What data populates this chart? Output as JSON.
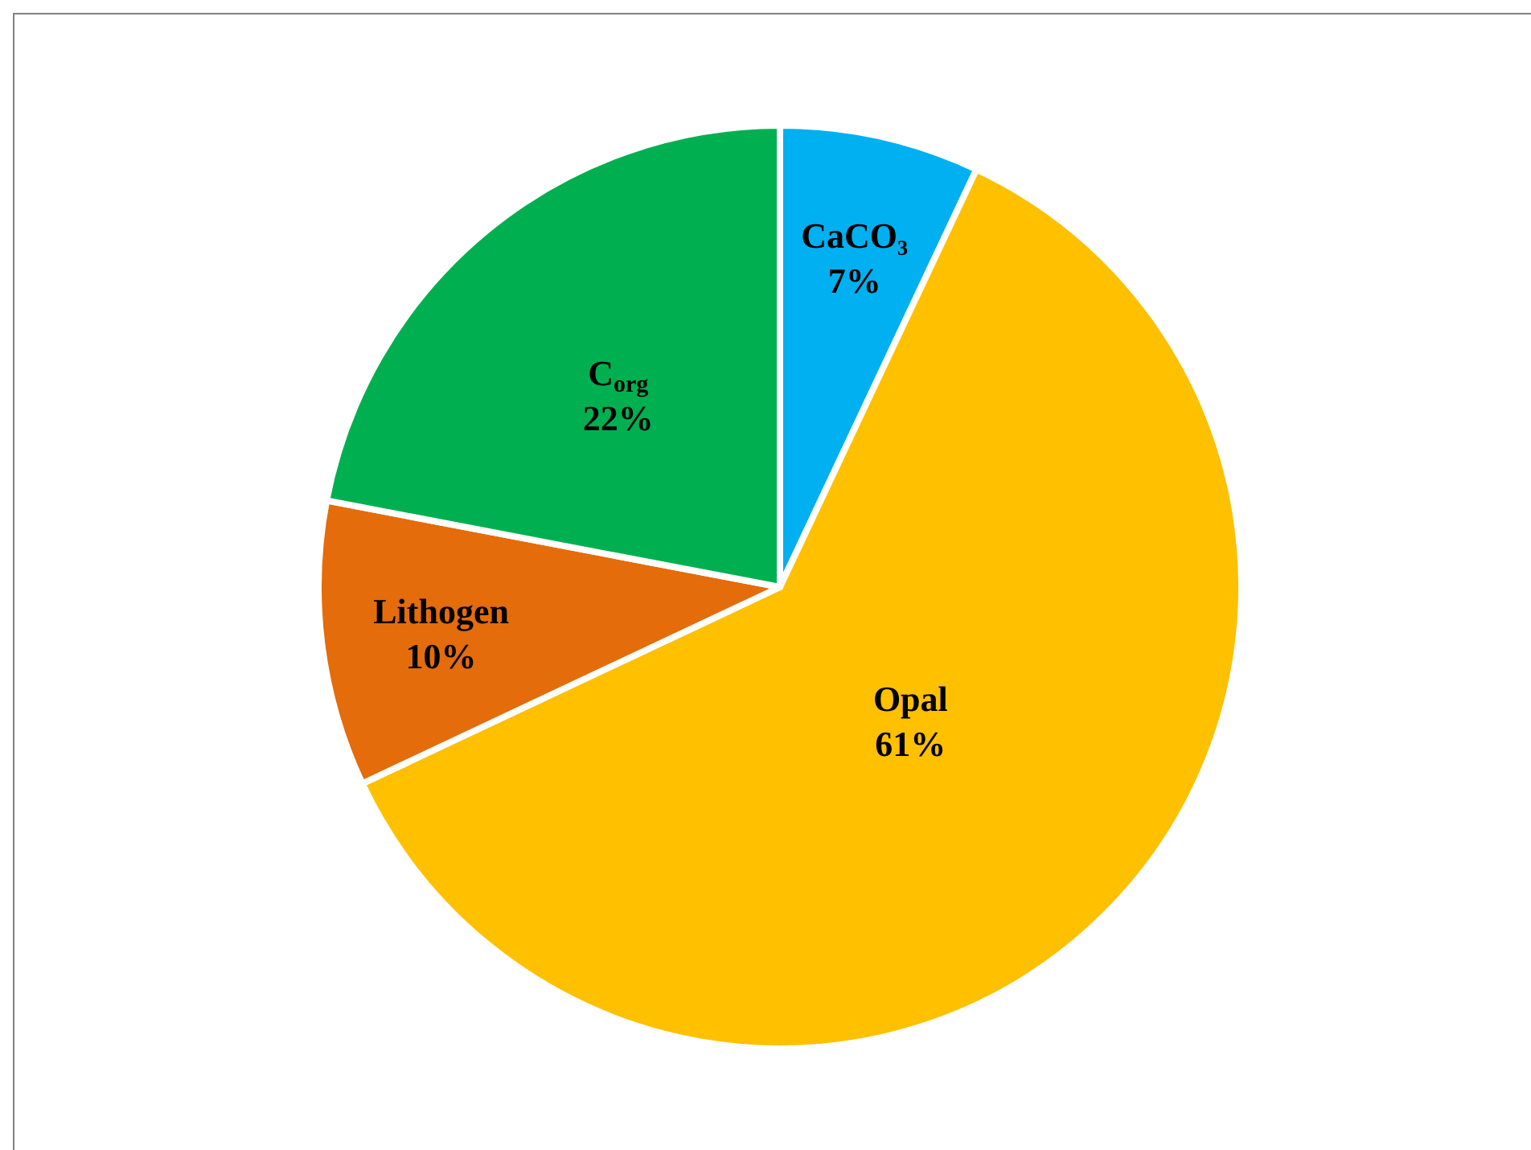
{
  "chart_data": {
    "type": "pie",
    "categories": [
      "CaCO₃",
      "Opal",
      "Lithogen",
      "C$_{org}$"
    ],
    "values": [
      7,
      61,
      10,
      22
    ],
    "colors": [
      "#00b0f0",
      "#ffc000",
      "#e46c0a",
      "#00b050"
    ],
    "value_labels": [
      "7%",
      "61%",
      "10%",
      "22%"
    ]
  }
}
